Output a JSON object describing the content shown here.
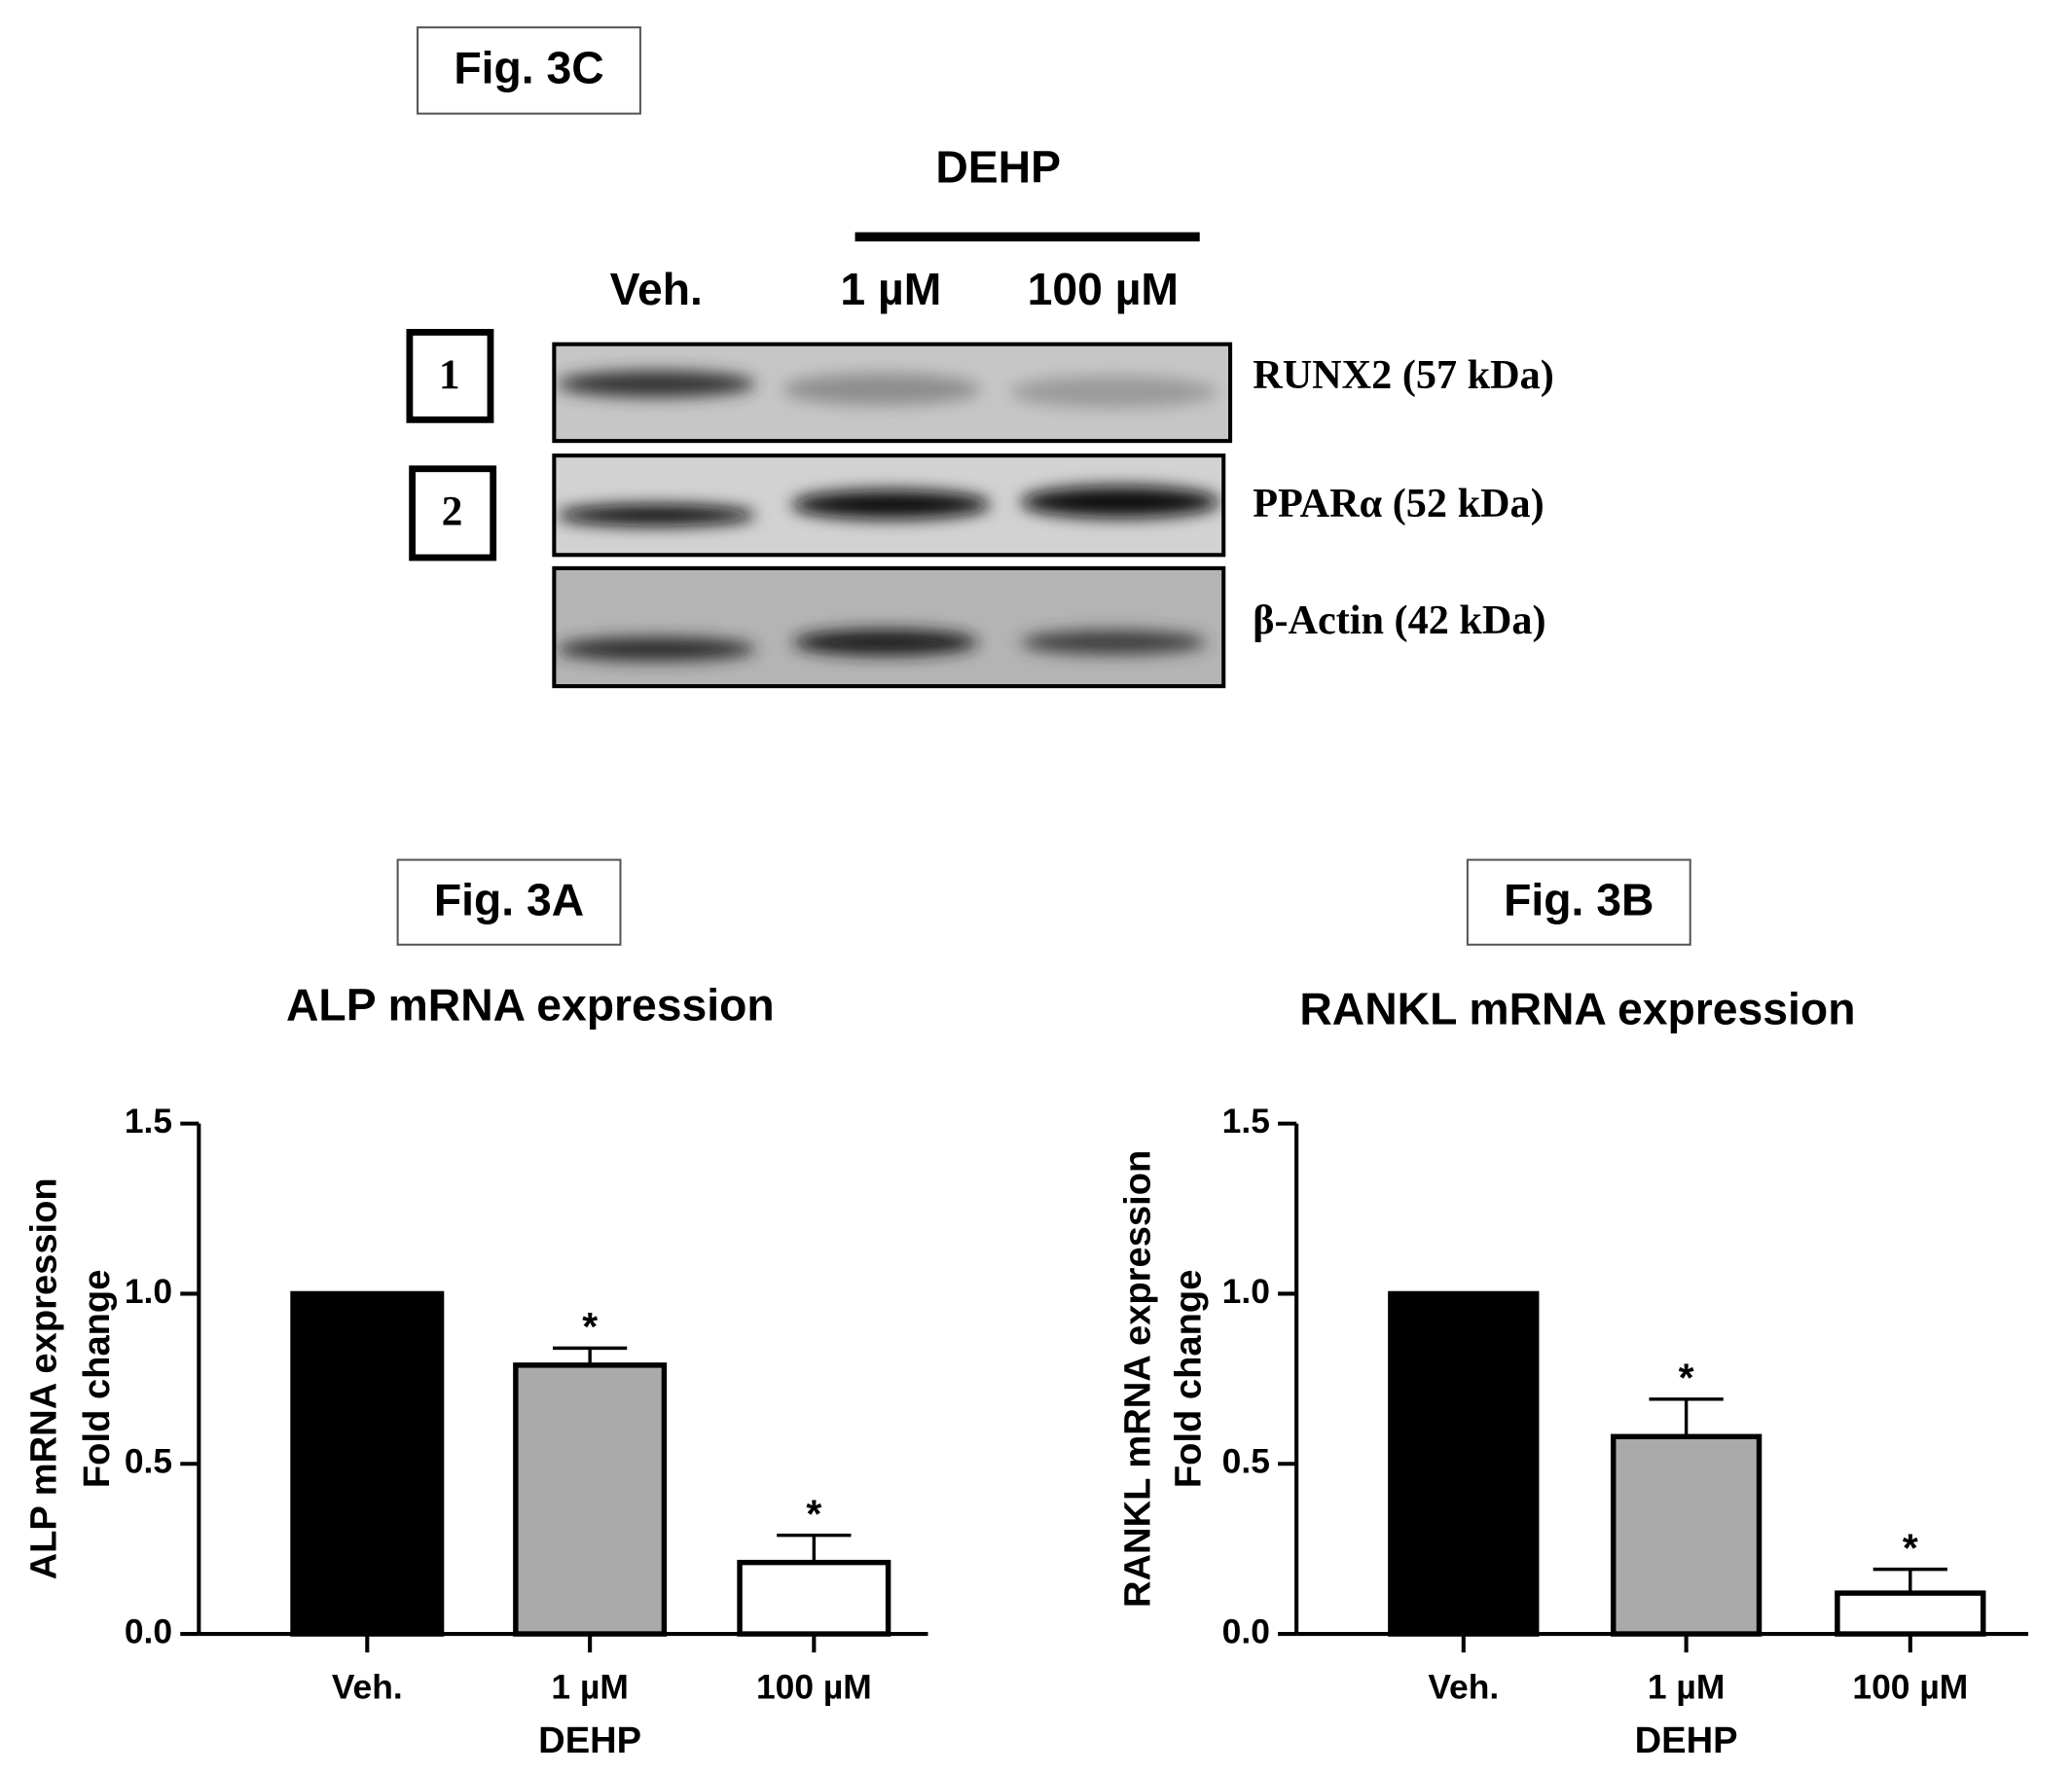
{
  "blot": {
    "panel_label": "Fig. 3C",
    "group": "DEHP",
    "lanes": [
      "Veh.",
      "1 µM",
      "100 µM"
    ],
    "rows": [
      {
        "marker": "1",
        "label": "RUNX2 (57 kDa)"
      },
      {
        "marker": "2",
        "label": "PPARα (52 kDa)"
      },
      {
        "label": "β-Actin (42 kDa)"
      }
    ]
  },
  "chart_data": [
    {
      "type": "bar",
      "panel_label": "Fig. 3A",
      "title": "ALP mRNA expression",
      "ylabel": [
        "ALP mRNA expression",
        "Fold change"
      ],
      "xlabel": "DEHP",
      "categories": [
        "Veh.",
        "1 µM",
        "100 µM"
      ],
      "values": [
        1.0,
        0.79,
        0.21
      ],
      "errors": [
        null,
        0.05,
        0.08
      ],
      "annotations": [
        null,
        "*",
        "*"
      ],
      "colors": [
        "#000000",
        "#aaaaaa",
        "#ffffff"
      ],
      "ylim": [
        0,
        1.5
      ],
      "yticks": [
        {
          "value": 0,
          "label": "0.0"
        },
        {
          "value": 0.5,
          "label": "0.5"
        },
        {
          "value": 1,
          "label": "1.0"
        },
        {
          "value": 1.5,
          "label": "1.5"
        }
      ]
    },
    {
      "type": "bar",
      "panel_label": "Fig. 3B",
      "title": "RANKL mRNA expression",
      "ylabel": [
        "RANKL mRNA expression",
        "Fold change"
      ],
      "xlabel": "DEHP",
      "categories": [
        "Veh.",
        "1 µM",
        "100 µM"
      ],
      "values": [
        1.0,
        0.58,
        0.12
      ],
      "errors": [
        null,
        0.11,
        0.07
      ],
      "annotations": [
        null,
        "*",
        "*"
      ],
      "colors": [
        "#000000",
        "#aaaaaa",
        "#ffffff"
      ],
      "ylim": [
        0,
        1.5
      ],
      "yticks": [
        {
          "value": 0,
          "label": "0.0"
        },
        {
          "value": 0.5,
          "label": "0.5"
        },
        {
          "value": 1,
          "label": "1.0"
        },
        {
          "value": 1.5,
          "label": "1.5"
        }
      ]
    }
  ]
}
